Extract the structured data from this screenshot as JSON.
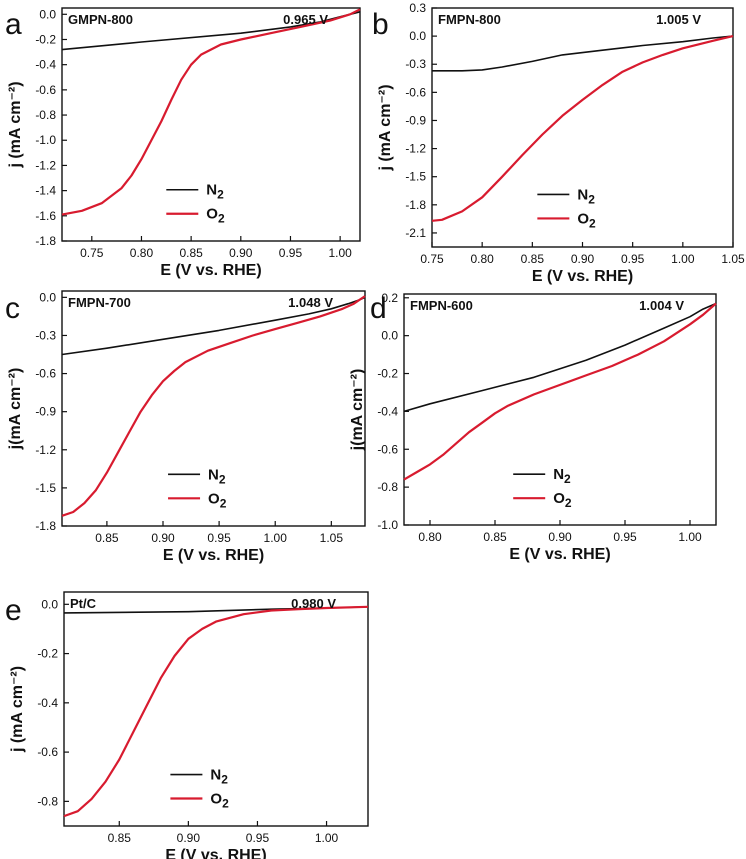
{
  "chart_data": [
    {
      "panel_letter": "a",
      "type": "line",
      "sample_label": "GMPN-800",
      "onset_label": "0.965 V",
      "xlabel": "E (V vs. RHE)",
      "ylabel": "j (mA cm⁻²)",
      "xlim": [
        0.72,
        1.02
      ],
      "ylim": [
        -1.8,
        0.05
      ],
      "xticks": [
        0.75,
        0.8,
        0.85,
        0.9,
        0.95,
        1.0
      ],
      "xtick_labels": [
        "0.75",
        "0.80",
        "0.85",
        "0.90",
        "0.95",
        "1.00"
      ],
      "yticks": [
        0.0,
        -0.2,
        -0.4,
        -0.6,
        -0.8,
        -1.0,
        -1.2,
        -1.4,
        -1.6,
        -1.8
      ],
      "ytick_labels": [
        "0.0",
        "-0.2",
        "-0.4",
        "-0.6",
        "-0.8",
        "-1.0",
        "-1.2",
        "-1.4",
        "-1.6",
        "-1.8"
      ],
      "legend": {
        "N2": "N",
        "O2": "O",
        "subscript": "2"
      },
      "series": [
        {
          "name": "N2",
          "color": "#111111",
          "x": [
            0.72,
            0.8,
            0.9,
            0.95,
            0.98,
            1.0,
            1.02
          ],
          "y": [
            -0.28,
            -0.22,
            -0.15,
            -0.1,
            -0.06,
            -0.02,
            0.02
          ]
        },
        {
          "name": "O2",
          "color": "#d81b2f",
          "x": [
            0.72,
            0.74,
            0.76,
            0.78,
            0.79,
            0.8,
            0.81,
            0.82,
            0.83,
            0.84,
            0.85,
            0.86,
            0.88,
            0.9,
            0.93,
            0.96,
            0.99,
            1.01,
            1.02
          ],
          "y": [
            -1.59,
            -1.56,
            -1.5,
            -1.38,
            -1.28,
            -1.15,
            -1.0,
            -0.85,
            -0.68,
            -0.52,
            -0.4,
            -0.32,
            -0.24,
            -0.2,
            -0.15,
            -0.1,
            -0.05,
            0.0,
            0.04
          ]
        }
      ]
    },
    {
      "panel_letter": "b",
      "type": "line",
      "sample_label": "FMPN-800",
      "onset_label": "1.005 V",
      "xlabel": "E (V vs. RHE)",
      "ylabel": "j (mA cm⁻²)",
      "xlim": [
        0.75,
        1.05
      ],
      "ylim": [
        -2.25,
        0.3
      ],
      "xticks": [
        0.75,
        0.8,
        0.85,
        0.9,
        0.95,
        1.0,
        1.05
      ],
      "xtick_labels": [
        "0.75",
        "0.80",
        "0.85",
        "0.90",
        "0.95",
        "1.00",
        "1.05"
      ],
      "yticks": [
        0.3,
        0.0,
        -0.3,
        -0.6,
        -0.9,
        -1.2,
        -1.5,
        -1.8,
        -2.1
      ],
      "ytick_labels": [
        "0.3",
        "0.0",
        "-0.3",
        "-0.6",
        "-0.9",
        "-1.2",
        "-1.5",
        "-1.8",
        "-2.1"
      ],
      "legend": {
        "N2": "N",
        "O2": "O",
        "subscript": "2"
      },
      "series": [
        {
          "name": "N2",
          "color": "#111111",
          "x": [
            0.75,
            0.78,
            0.8,
            0.82,
            0.85,
            0.88,
            0.92,
            0.96,
            1.0,
            1.03,
            1.05
          ],
          "y": [
            -0.37,
            -0.37,
            -0.36,
            -0.33,
            -0.27,
            -0.2,
            -0.15,
            -0.1,
            -0.06,
            -0.02,
            0.0
          ]
        },
        {
          "name": "O2",
          "color": "#d81b2f",
          "x": [
            0.75,
            0.76,
            0.78,
            0.8,
            0.82,
            0.84,
            0.86,
            0.88,
            0.9,
            0.92,
            0.94,
            0.96,
            0.98,
            1.0,
            1.03,
            1.05
          ],
          "y": [
            -1.97,
            -1.96,
            -1.87,
            -1.72,
            -1.5,
            -1.27,
            -1.05,
            -0.85,
            -0.68,
            -0.52,
            -0.38,
            -0.28,
            -0.2,
            -0.13,
            -0.05,
            0.0
          ]
        }
      ]
    },
    {
      "panel_letter": "c",
      "type": "line",
      "sample_label": "FMPN-700",
      "onset_label": "1.048 V",
      "xlabel": "E (V vs. RHE)",
      "ylabel": "j(mA cm⁻²)",
      "xlim": [
        0.81,
        1.08
      ],
      "ylim": [
        -1.8,
        0.05
      ],
      "xticks": [
        0.85,
        0.9,
        0.95,
        1.0,
        1.05
      ],
      "xtick_labels": [
        "0.85",
        "0.90",
        "0.95",
        "1.00",
        "1.05"
      ],
      "yticks": [
        0.0,
        -0.3,
        -0.6,
        -0.9,
        -1.2,
        -1.5,
        -1.8
      ],
      "ytick_labels": [
        "0.0",
        "-0.3",
        "-0.6",
        "-0.9",
        "-1.2",
        "-1.5",
        "-1.8"
      ],
      "legend": {
        "N2": "N",
        "O2": "O",
        "subscript": "2"
      },
      "series": [
        {
          "name": "N2",
          "color": "#111111",
          "x": [
            0.81,
            0.85,
            0.9,
            0.95,
            1.0,
            1.03,
            1.05,
            1.065,
            1.075,
            1.08
          ],
          "y": [
            -0.45,
            -0.4,
            -0.33,
            -0.26,
            -0.18,
            -0.13,
            -0.09,
            -0.05,
            -0.02,
            0.0
          ]
        },
        {
          "name": "O2",
          "color": "#d81b2f",
          "x": [
            0.81,
            0.82,
            0.83,
            0.84,
            0.85,
            0.86,
            0.87,
            0.88,
            0.89,
            0.9,
            0.91,
            0.92,
            0.94,
            0.96,
            0.98,
            1.0,
            1.02,
            1.04,
            1.06,
            1.07,
            1.08
          ],
          "y": [
            -1.72,
            -1.69,
            -1.62,
            -1.52,
            -1.38,
            -1.22,
            -1.06,
            -0.9,
            -0.77,
            -0.66,
            -0.58,
            -0.51,
            -0.42,
            -0.36,
            -0.3,
            -0.25,
            -0.2,
            -0.15,
            -0.09,
            -0.05,
            0.01
          ]
        }
      ]
    },
    {
      "panel_letter": "d",
      "type": "line",
      "sample_label": "FMPN-600",
      "onset_label": "1.004 V",
      "xlabel": "E (V vs. RHE)",
      "ylabel": "j(mA cm⁻²)",
      "xlim": [
        0.78,
        1.02
      ],
      "ylim": [
        -1.0,
        0.22
      ],
      "xticks": [
        0.8,
        0.85,
        0.9,
        0.95,
        1.0
      ],
      "xtick_labels": [
        "0.80",
        "0.85",
        "0.90",
        "0.95",
        "1.00"
      ],
      "yticks": [
        0.2,
        0.0,
        -0.2,
        -0.4,
        -0.6,
        -0.8,
        -1.0
      ],
      "ytick_labels": [
        "0.2",
        "0.0",
        "-0.2",
        "-0.4",
        "-0.6",
        "-0.8",
        "-1.0"
      ],
      "legend": {
        "N2": "N",
        "O2": "O",
        "subscript": "2"
      },
      "series": [
        {
          "name": "N2",
          "color": "#111111",
          "x": [
            0.78,
            0.8,
            0.84,
            0.88,
            0.92,
            0.95,
            0.98,
            1.0,
            1.01,
            1.02
          ],
          "y": [
            -0.4,
            -0.36,
            -0.29,
            -0.22,
            -0.13,
            -0.05,
            0.04,
            0.1,
            0.14,
            0.17
          ]
        },
        {
          "name": "O2",
          "color": "#d81b2f",
          "x": [
            0.78,
            0.79,
            0.8,
            0.81,
            0.82,
            0.83,
            0.84,
            0.85,
            0.86,
            0.88,
            0.9,
            0.92,
            0.94,
            0.96,
            0.98,
            1.0,
            1.01,
            1.02
          ],
          "y": [
            -0.76,
            -0.72,
            -0.68,
            -0.63,
            -0.57,
            -0.51,
            -0.46,
            -0.41,
            -0.37,
            -0.31,
            -0.26,
            -0.21,
            -0.16,
            -0.1,
            -0.03,
            0.06,
            0.11,
            0.17
          ]
        }
      ]
    },
    {
      "panel_letter": "e",
      "type": "line",
      "sample_label": "Pt/C",
      "onset_label": "0.980 V",
      "xlabel": "E (V vs. RHE)",
      "ylabel": "j (mA cm⁻²)",
      "xlim": [
        0.81,
        1.03
      ],
      "ylim": [
        -0.9,
        0.05
      ],
      "xticks": [
        0.85,
        0.9,
        0.95,
        1.0
      ],
      "xtick_labels": [
        "0.85",
        "0.90",
        "0.95",
        "1.00"
      ],
      "yticks": [
        0.0,
        -0.2,
        -0.4,
        -0.6,
        -0.8
      ],
      "ytick_labels": [
        "0.0",
        "-0.2",
        "-0.4",
        "-0.6",
        "-0.8"
      ],
      "legend": {
        "N2": "N",
        "O2": "O",
        "subscript": "2"
      },
      "series": [
        {
          "name": "N2",
          "color": "#111111",
          "x": [
            0.81,
            0.9,
            0.96,
            1.0,
            1.03
          ],
          "y": [
            -0.035,
            -0.03,
            -0.02,
            -0.015,
            -0.01
          ]
        },
        {
          "name": "O2",
          "color": "#d81b2f",
          "x": [
            0.81,
            0.82,
            0.83,
            0.84,
            0.85,
            0.86,
            0.87,
            0.88,
            0.89,
            0.9,
            0.91,
            0.92,
            0.94,
            0.96,
            0.98,
            1.0,
            1.03
          ],
          "y": [
            -0.86,
            -0.84,
            -0.79,
            -0.72,
            -0.63,
            -0.52,
            -0.41,
            -0.3,
            -0.21,
            -0.14,
            -0.1,
            -0.07,
            -0.04,
            -0.025,
            -0.02,
            -0.015,
            -0.01
          ]
        }
      ]
    }
  ]
}
